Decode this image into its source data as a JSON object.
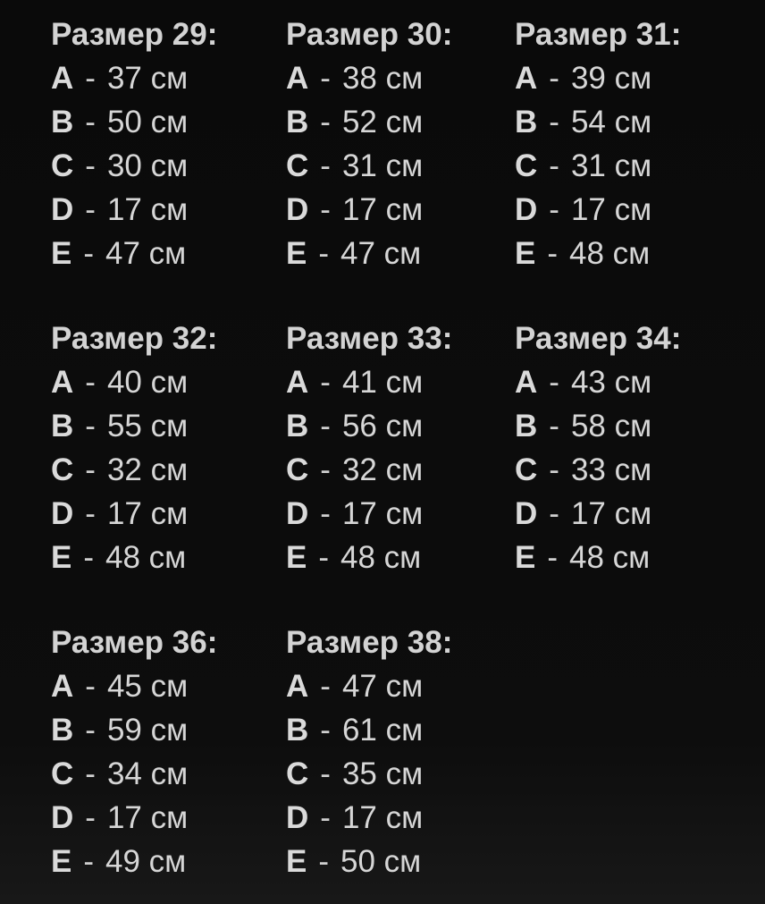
{
  "separator": "-",
  "unit": "см",
  "colors": {
    "background": "#0d0d0d",
    "text": "#d8d8d8"
  },
  "blocks": [
    {
      "title": "Размер 29:",
      "rows": [
        {
          "label": "A",
          "value": "37 см"
        },
        {
          "label": "B",
          "value": "50 см"
        },
        {
          "label": "C",
          "value": "30 см"
        },
        {
          "label": "D",
          "value": "17 см"
        },
        {
          "label": "E",
          "value": "47 см"
        }
      ]
    },
    {
      "title": "Размер 30:",
      "rows": [
        {
          "label": "A",
          "value": "38 см"
        },
        {
          "label": "B",
          "value": "52 см"
        },
        {
          "label": "C",
          "value": "31 см"
        },
        {
          "label": "D",
          "value": "17 см"
        },
        {
          "label": "E",
          "value": "47 см"
        }
      ]
    },
    {
      "title": "Размер 31:",
      "rows": [
        {
          "label": "A",
          "value": "39 см"
        },
        {
          "label": "B",
          "value": "54 см"
        },
        {
          "label": "C",
          "value": "31 см"
        },
        {
          "label": "D",
          "value": "17 см"
        },
        {
          "label": "E",
          "value": "48 см"
        }
      ]
    },
    {
      "title": "Размер 32:",
      "rows": [
        {
          "label": "A",
          "value": "40 см"
        },
        {
          "label": "B",
          "value": "55 см"
        },
        {
          "label": "C",
          "value": "32 см"
        },
        {
          "label": "D",
          "value": "17 см"
        },
        {
          "label": "E",
          "value": "48 см"
        }
      ]
    },
    {
      "title": "Размер 33:",
      "rows": [
        {
          "label": "A",
          "value": "41 см"
        },
        {
          "label": "B",
          "value": "56 см"
        },
        {
          "label": "C",
          "value": "32 см"
        },
        {
          "label": "D",
          "value": "17 см"
        },
        {
          "label": "E",
          "value": "48 см"
        }
      ]
    },
    {
      "title": "Размер 34:",
      "rows": [
        {
          "label": "A",
          "value": "43 см"
        },
        {
          "label": "B",
          "value": "58 см"
        },
        {
          "label": "C",
          "value": "33 см"
        },
        {
          "label": "D",
          "value": "17 см"
        },
        {
          "label": "E",
          "value": "48 см"
        }
      ]
    },
    {
      "title": "Размер 36:",
      "rows": [
        {
          "label": "A",
          "value": "45 см"
        },
        {
          "label": "B",
          "value": "59 см"
        },
        {
          "label": "C",
          "value": "34 см"
        },
        {
          "label": "D",
          "value": "17 см"
        },
        {
          "label": "E",
          "value": "49 см"
        }
      ]
    },
    {
      "title": "Размер 38:",
      "rows": [
        {
          "label": "A",
          "value": "47 см"
        },
        {
          "label": "B",
          "value": "61 см"
        },
        {
          "label": "C",
          "value": "35 см"
        },
        {
          "label": "D",
          "value": "17 см"
        },
        {
          "label": "E",
          "value": "50 см"
        }
      ]
    }
  ]
}
